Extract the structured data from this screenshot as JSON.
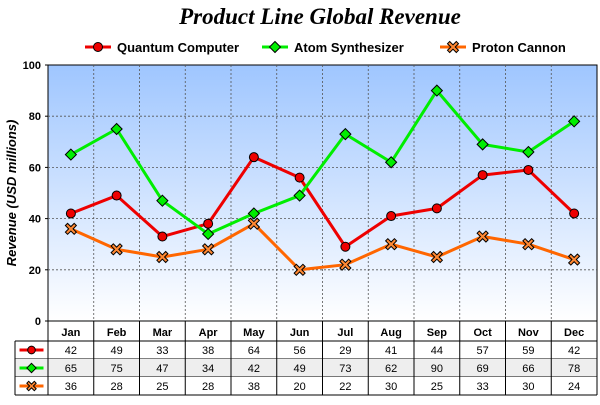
{
  "chart_data": {
    "type": "line",
    "title": "Product Line Global Revenue",
    "xlabel": "",
    "ylabel": "Revenue (USD millions)",
    "ylim": [
      0,
      100
    ],
    "yticks": [
      "0",
      "20",
      "40",
      "60",
      "80",
      "100"
    ],
    "grid": true,
    "legend_position": "top",
    "categories": [
      "Jan",
      "Feb",
      "Mar",
      "Apr",
      "May",
      "Jun",
      "Jul",
      "Aug",
      "Sep",
      "Oct",
      "Nov",
      "Dec"
    ],
    "series": [
      {
        "name": "Quantum Computer",
        "color": "#ee0000",
        "marker_color": "#ee0000",
        "marker": "circle",
        "values": [
          42,
          49,
          33,
          38,
          64,
          56,
          29,
          41,
          44,
          57,
          59,
          42
        ]
      },
      {
        "name": "Atom Synthesizer",
        "color": "#00ee00",
        "marker_color": "#00ee00",
        "marker": "diamond",
        "values": [
          65,
          75,
          47,
          34,
          42,
          49,
          73,
          62,
          90,
          69,
          66,
          78
        ]
      },
      {
        "name": "Proton Cannon",
        "color": "#ff6600",
        "marker_color": "#ff8833",
        "marker": "cross",
        "values": [
          36,
          28,
          25,
          28,
          38,
          20,
          22,
          30,
          25,
          33,
          30,
          24
        ]
      }
    ],
    "data_table": true
  }
}
